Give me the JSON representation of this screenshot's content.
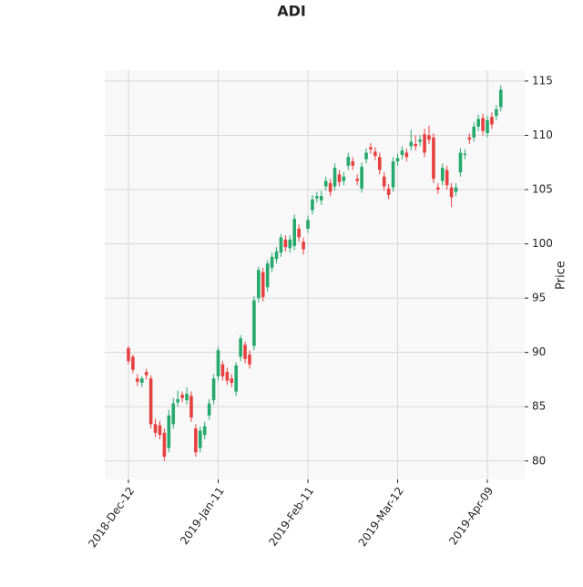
{
  "chart_data": {
    "type": "candlestick",
    "title": "ADI",
    "y_label": "Price",
    "x": [
      "2018-Dec-12",
      "2018-Dec-13",
      "2018-Dec-14",
      "2018-Dec-17",
      "2018-Dec-18",
      "2018-Dec-19",
      "2018-Dec-20",
      "2018-Dec-21",
      "2018-Dec-24",
      "2018-Dec-26",
      "2018-Dec-27",
      "2018-Dec-28",
      "2018-Dec-31",
      "2019-Jan-02",
      "2019-Jan-03",
      "2019-Jan-04",
      "2019-Jan-07",
      "2019-Jan-08",
      "2019-Jan-09",
      "2019-Jan-10",
      "2019-Jan-11",
      "2019-Jan-14",
      "2019-Jan-15",
      "2019-Jan-16",
      "2019-Jan-17",
      "2019-Jan-18",
      "2019-Jan-22",
      "2019-Jan-23",
      "2019-Jan-24",
      "2019-Jan-25",
      "2019-Jan-28",
      "2019-Jan-29",
      "2019-Jan-30",
      "2019-Jan-31",
      "2019-Feb-01",
      "2019-Feb-04",
      "2019-Feb-05",
      "2019-Feb-06",
      "2019-Feb-07",
      "2019-Feb-08",
      "2019-Feb-11",
      "2019-Feb-12",
      "2019-Feb-13",
      "2019-Feb-14",
      "2019-Feb-15",
      "2019-Feb-19",
      "2019-Feb-20",
      "2019-Feb-21",
      "2019-Feb-22",
      "2019-Feb-25",
      "2019-Feb-26",
      "2019-Feb-27",
      "2019-Feb-28",
      "2019-Mar-01",
      "2019-Mar-04",
      "2019-Mar-05",
      "2019-Mar-06",
      "2019-Mar-07",
      "2019-Mar-08",
      "2019-Mar-11",
      "2019-Mar-12",
      "2019-Mar-13",
      "2019-Mar-14",
      "2019-Mar-15",
      "2019-Mar-18",
      "2019-Mar-19",
      "2019-Mar-20",
      "2019-Mar-21",
      "2019-Mar-22",
      "2019-Mar-25",
      "2019-Mar-26",
      "2019-Mar-27",
      "2019-Mar-28",
      "2019-Mar-29",
      "2019-Apr-01",
      "2019-Apr-02",
      "2019-Apr-03",
      "2019-Apr-04",
      "2019-Apr-05",
      "2019-Apr-08",
      "2019-Apr-09",
      "2019-Apr-10",
      "2019-Apr-11",
      "2019-Apr-12"
    ],
    "open": [
      90.4,
      89.6,
      87.6,
      87.2,
      88.2,
      87.6,
      83.4,
      83.3,
      82.6,
      81.2,
      83.4,
      85.4,
      86.1,
      85.6,
      86.0,
      83.0,
      81.2,
      82.4,
      84.2,
      85.6,
      87.8,
      88.9,
      88.2,
      87.6,
      86.4,
      89.6,
      90.7,
      89.8,
      90.6,
      95.0,
      97.4,
      96.0,
      97.8,
      98.6,
      99.2,
      100.4,
      99.6,
      99.8,
      101.4,
      100.2,
      101.4,
      103.1,
      104.2,
      104.0,
      105.3,
      105.6,
      105.3,
      106.4,
      105.8,
      107.2,
      107.6,
      106.0,
      105.1,
      107.8,
      108.9,
      108.5,
      108.0,
      106.2,
      105.1,
      105.2,
      107.6,
      108.2,
      108.4,
      109.0,
      109.2,
      109.4,
      110.1,
      110.0,
      109.8,
      105.2,
      105.8,
      106.8,
      105.2,
      104.8,
      106.6,
      108.2,
      109.8,
      109.8,
      110.8,
      111.6,
      110.2,
      111.7,
      111.8,
      112.6
    ],
    "high": [
      90.6,
      89.8,
      88.0,
      87.8,
      88.5,
      87.9,
      83.9,
      83.7,
      83.0,
      84.7,
      85.8,
      86.5,
      86.4,
      86.8,
      86.4,
      83.4,
      83.2,
      83.6,
      85.7,
      88.0,
      90.5,
      89.2,
      88.6,
      88.0,
      89.1,
      91.6,
      91.0,
      90.2,
      95.2,
      97.9,
      97.8,
      98.5,
      99.2,
      99.7,
      100.9,
      100.8,
      100.8,
      102.7,
      101.8,
      100.6,
      102.6,
      104.5,
      104.8,
      104.9,
      106.2,
      106.0,
      107.4,
      106.8,
      106.6,
      108.4,
      108.0,
      106.4,
      107.5,
      108.8,
      109.3,
      108.9,
      108.4,
      106.6,
      105.5,
      108.0,
      108.3,
      109.0,
      108.8,
      110.5,
      110.0,
      110.0,
      110.6,
      110.9,
      110.2,
      105.6,
      107.4,
      107.2,
      105.6,
      105.6,
      108.8,
      108.7,
      110.2,
      111.2,
      111.9,
      112.0,
      111.8,
      112.1,
      112.8,
      114.6
    ],
    "low": [
      88.9,
      88.1,
      86.9,
      86.8,
      87.5,
      83.0,
      82.2,
      82.0,
      80.0,
      80.8,
      83.0,
      85.0,
      85.4,
      85.2,
      83.6,
      80.4,
      80.8,
      82.0,
      83.8,
      85.2,
      87.4,
      87.4,
      87.0,
      86.8,
      86.0,
      89.2,
      89.0,
      88.5,
      90.2,
      94.6,
      94.7,
      95.6,
      97.4,
      98.2,
      98.8,
      99.3,
      99.2,
      99.4,
      100.2,
      99.0,
      101.0,
      102.7,
      103.8,
      103.6,
      104.9,
      104.4,
      104.9,
      105.3,
      105.4,
      106.8,
      106.8,
      105.4,
      104.7,
      107.4,
      108.3,
      107.7,
      106.4,
      104.9,
      104.1,
      104.8,
      107.2,
      107.8,
      107.6,
      108.6,
      108.6,
      109.0,
      108.0,
      109.2,
      105.6,
      104.6,
      105.4,
      105.0,
      103.4,
      104.4,
      106.2,
      107.8,
      109.2,
      109.4,
      110.4,
      110.0,
      109.8,
      110.6,
      111.4,
      112.2
    ],
    "close": [
      89.2,
      88.4,
      87.3,
      87.6,
      87.9,
      83.4,
      82.6,
      82.4,
      80.4,
      84.2,
      85.3,
      85.7,
      85.8,
      86.2,
      84.0,
      80.8,
      82.8,
      83.2,
      85.3,
      87.6,
      90.2,
      87.8,
      87.4,
      87.2,
      88.8,
      91.3,
      89.4,
      88.9,
      94.8,
      97.6,
      95.1,
      98.2,
      98.8,
      99.3,
      100.6,
      99.7,
      100.4,
      102.3,
      100.6,
      99.5,
      102.2,
      104.1,
      104.4,
      104.4,
      105.8,
      104.8,
      107.0,
      105.7,
      106.2,
      108.0,
      107.2,
      105.8,
      107.1,
      108.4,
      108.7,
      108.1,
      106.8,
      105.3,
      104.5,
      107.6,
      107.9,
      108.6,
      108.0,
      109.4,
      109.0,
      109.6,
      108.4,
      109.6,
      106.0,
      105.0,
      107.0,
      105.4,
      104.3,
      105.2,
      108.4,
      108.3,
      109.6,
      110.8,
      111.5,
      110.4,
      111.4,
      111.0,
      112.4,
      114.2
    ],
    "xticks": [
      0,
      20,
      40,
      60,
      80
    ],
    "ylim": [
      78.3,
      116
    ],
    "yticks": [
      80,
      85,
      90,
      95,
      100,
      105,
      110,
      115
    ],
    "up_color": "#26a96c",
    "down_color": "#e8403f",
    "grid": true
  }
}
